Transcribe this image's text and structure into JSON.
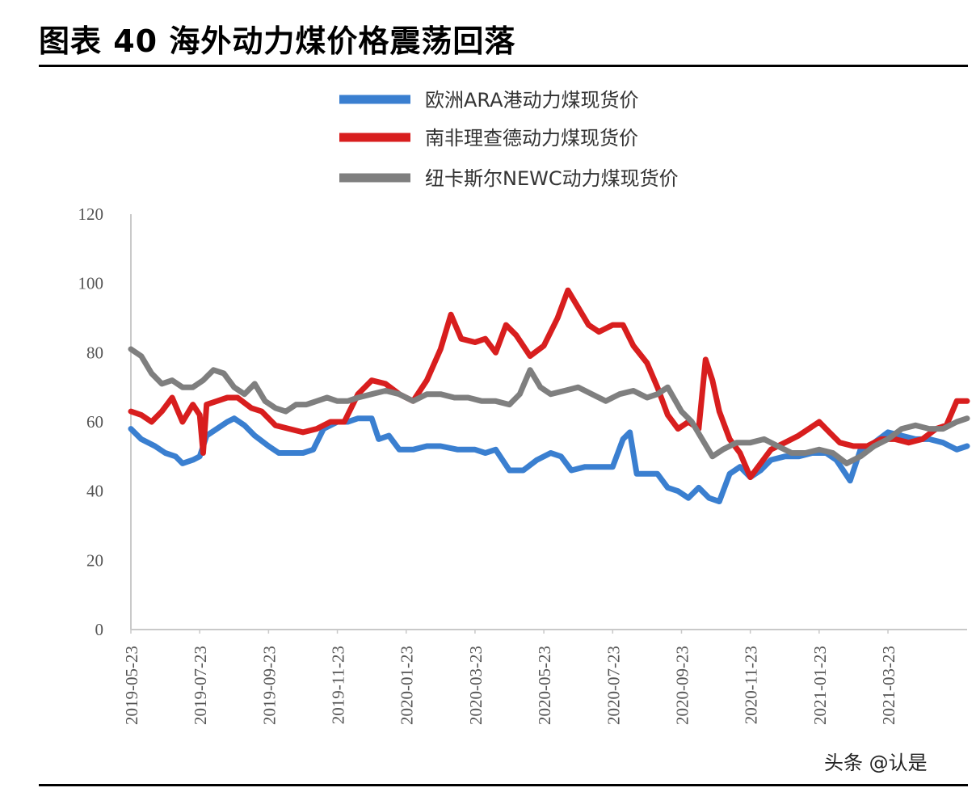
{
  "header": {
    "title": "图表 40  海外动力煤价格震荡回落"
  },
  "watermark": "头条 @认是",
  "colors": {
    "europe": "#3a7fd0",
    "south_africa": "#d81e1e",
    "newcastle": "#7f7f7f",
    "axis": "#c9c9c9"
  },
  "chart_data": {
    "type": "line",
    "ylim": [
      0,
      120
    ],
    "yticks": [
      "0",
      "20",
      "40",
      "60",
      "80",
      "100",
      "120"
    ],
    "xticks": [
      "2019-05-23",
      "2019-07-23",
      "2019-09-23",
      "2019-11-23",
      "2020-01-23",
      "2020-03-23",
      "2020-05-23",
      "2020-07-23",
      "2020-09-23",
      "2020-11-23",
      "2021-01-23",
      "2021-03-23"
    ],
    "x_range_months": [
      0,
      24.3
    ],
    "series": [
      {
        "name": "欧洲ARA港动力煤现货价",
        "color": "#3a7fd0",
        "points": [
          [
            0,
            58
          ],
          [
            0.3,
            55
          ],
          [
            0.7,
            53
          ],
          [
            1.0,
            51
          ],
          [
            1.3,
            50
          ],
          [
            1.5,
            48
          ],
          [
            1.8,
            49
          ],
          [
            2.0,
            50
          ],
          [
            2.2,
            56
          ],
          [
            2.5,
            58
          ],
          [
            2.8,
            60
          ],
          [
            3.0,
            61
          ],
          [
            3.3,
            59
          ],
          [
            3.6,
            56
          ],
          [
            4.0,
            53
          ],
          [
            4.3,
            51
          ],
          [
            4.6,
            51
          ],
          [
            5.0,
            51
          ],
          [
            5.3,
            52
          ],
          [
            5.6,
            58
          ],
          [
            6.0,
            60
          ],
          [
            6.3,
            60
          ],
          [
            6.6,
            61
          ],
          [
            7.0,
            61
          ],
          [
            7.2,
            55
          ],
          [
            7.5,
            56
          ],
          [
            7.8,
            52
          ],
          [
            8.2,
            52
          ],
          [
            8.6,
            53
          ],
          [
            9.0,
            53
          ],
          [
            9.5,
            52
          ],
          [
            10.0,
            52
          ],
          [
            10.3,
            51
          ],
          [
            10.6,
            52
          ],
          [
            11.0,
            46
          ],
          [
            11.4,
            46
          ],
          [
            11.8,
            49
          ],
          [
            12.2,
            51
          ],
          [
            12.5,
            50
          ],
          [
            12.8,
            46
          ],
          [
            13.2,
            47
          ],
          [
            13.6,
            47
          ],
          [
            14.0,
            47
          ],
          [
            14.3,
            55
          ],
          [
            14.5,
            57
          ],
          [
            14.7,
            45
          ],
          [
            15.0,
            45
          ],
          [
            15.3,
            45
          ],
          [
            15.6,
            41
          ],
          [
            15.9,
            40
          ],
          [
            16.2,
            38
          ],
          [
            16.5,
            41
          ],
          [
            16.8,
            38
          ],
          [
            17.1,
            37
          ],
          [
            17.4,
            45
          ],
          [
            17.7,
            47
          ],
          [
            18.0,
            44
          ],
          [
            18.3,
            46
          ],
          [
            18.6,
            49
          ],
          [
            19.0,
            50
          ],
          [
            19.4,
            50
          ],
          [
            19.8,
            51
          ],
          [
            20.2,
            51
          ],
          [
            20.5,
            49
          ],
          [
            20.9,
            43
          ],
          [
            21.2,
            52
          ],
          [
            21.6,
            54
          ],
          [
            22.0,
            57
          ],
          [
            22.4,
            56
          ],
          [
            22.8,
            55
          ],
          [
            23.2,
            55
          ],
          [
            23.6,
            54
          ],
          [
            24.0,
            52
          ],
          [
            24.3,
            53
          ]
        ]
      },
      {
        "name": "南非理查德动力煤现货价",
        "color": "#d81e1e",
        "points": [
          [
            0,
            63
          ],
          [
            0.3,
            62
          ],
          [
            0.6,
            60
          ],
          [
            0.9,
            63
          ],
          [
            1.2,
            67
          ],
          [
            1.5,
            60
          ],
          [
            1.8,
            65
          ],
          [
            2.0,
            62
          ],
          [
            2.1,
            51
          ],
          [
            2.2,
            65
          ],
          [
            2.5,
            66
          ],
          [
            2.8,
            67
          ],
          [
            3.1,
            67
          ],
          [
            3.5,
            64
          ],
          [
            3.8,
            63
          ],
          [
            4.2,
            59
          ],
          [
            4.6,
            58
          ],
          [
            5.0,
            57
          ],
          [
            5.4,
            58
          ],
          [
            5.8,
            60
          ],
          [
            6.2,
            60
          ],
          [
            6.6,
            68
          ],
          [
            7.0,
            72
          ],
          [
            7.4,
            71
          ],
          [
            7.8,
            68
          ],
          [
            8.2,
            66
          ],
          [
            8.6,
            72
          ],
          [
            9.0,
            81
          ],
          [
            9.3,
            91
          ],
          [
            9.6,
            84
          ],
          [
            10.0,
            83
          ],
          [
            10.3,
            84
          ],
          [
            10.6,
            80
          ],
          [
            10.9,
            88
          ],
          [
            11.2,
            85
          ],
          [
            11.6,
            79
          ],
          [
            12.0,
            82
          ],
          [
            12.4,
            90
          ],
          [
            12.7,
            98
          ],
          [
            13.0,
            93
          ],
          [
            13.3,
            88
          ],
          [
            13.6,
            86
          ],
          [
            14.0,
            88
          ],
          [
            14.3,
            88
          ],
          [
            14.6,
            82
          ],
          [
            15.0,
            77
          ],
          [
            15.3,
            70
          ],
          [
            15.6,
            62
          ],
          [
            15.9,
            58
          ],
          [
            16.2,
            60
          ],
          [
            16.5,
            58
          ],
          [
            16.7,
            78
          ],
          [
            16.9,
            72
          ],
          [
            17.1,
            63
          ],
          [
            17.4,
            55
          ],
          [
            17.7,
            51
          ],
          [
            18.0,
            44
          ],
          [
            18.3,
            48
          ],
          [
            18.6,
            52
          ],
          [
            19.0,
            54
          ],
          [
            19.4,
            56
          ],
          [
            19.7,
            58
          ],
          [
            20.0,
            60
          ],
          [
            20.3,
            57
          ],
          [
            20.6,
            54
          ],
          [
            21.0,
            53
          ],
          [
            21.4,
            53
          ],
          [
            21.8,
            55
          ],
          [
            22.2,
            55
          ],
          [
            22.6,
            54
          ],
          [
            23.0,
            55
          ],
          [
            23.4,
            58
          ],
          [
            23.7,
            59
          ],
          [
            24.0,
            66
          ],
          [
            24.3,
            66
          ]
        ]
      },
      {
        "name": "纽卡斯尔NEWC动力煤现货价",
        "color": "#7f7f7f",
        "points": [
          [
            0,
            81
          ],
          [
            0.3,
            79
          ],
          [
            0.6,
            74
          ],
          [
            0.9,
            71
          ],
          [
            1.2,
            72
          ],
          [
            1.5,
            70
          ],
          [
            1.8,
            70
          ],
          [
            2.1,
            72
          ],
          [
            2.4,
            75
          ],
          [
            2.7,
            74
          ],
          [
            3.0,
            70
          ],
          [
            3.3,
            68
          ],
          [
            3.6,
            71
          ],
          [
            3.9,
            66
          ],
          [
            4.2,
            64
          ],
          [
            4.5,
            63
          ],
          [
            4.8,
            65
          ],
          [
            5.1,
            65
          ],
          [
            5.4,
            66
          ],
          [
            5.7,
            67
          ],
          [
            6.0,
            66
          ],
          [
            6.3,
            66
          ],
          [
            6.6,
            67
          ],
          [
            7.0,
            68
          ],
          [
            7.4,
            69
          ],
          [
            7.8,
            68
          ],
          [
            8.2,
            66
          ],
          [
            8.6,
            68
          ],
          [
            9.0,
            68
          ],
          [
            9.4,
            67
          ],
          [
            9.8,
            67
          ],
          [
            10.2,
            66
          ],
          [
            10.6,
            66
          ],
          [
            11.0,
            65
          ],
          [
            11.3,
            68
          ],
          [
            11.6,
            75
          ],
          [
            11.9,
            70
          ],
          [
            12.2,
            68
          ],
          [
            12.6,
            69
          ],
          [
            13.0,
            70
          ],
          [
            13.4,
            68
          ],
          [
            13.8,
            66
          ],
          [
            14.2,
            68
          ],
          [
            14.6,
            69
          ],
          [
            15.0,
            67
          ],
          [
            15.3,
            68
          ],
          [
            15.6,
            70
          ],
          [
            16.0,
            63
          ],
          [
            16.3,
            60
          ],
          [
            16.6,
            55
          ],
          [
            16.9,
            50
          ],
          [
            17.2,
            52
          ],
          [
            17.6,
            54
          ],
          [
            18.0,
            54
          ],
          [
            18.4,
            55
          ],
          [
            18.8,
            53
          ],
          [
            19.2,
            51
          ],
          [
            19.6,
            51
          ],
          [
            20.0,
            52
          ],
          [
            20.4,
            51
          ],
          [
            20.8,
            48
          ],
          [
            21.2,
            50
          ],
          [
            21.6,
            53
          ],
          [
            22.0,
            55
          ],
          [
            22.4,
            58
          ],
          [
            22.8,
            59
          ],
          [
            23.2,
            58
          ],
          [
            23.6,
            58
          ],
          [
            24.0,
            60
          ],
          [
            24.3,
            61
          ]
        ]
      }
    ]
  }
}
